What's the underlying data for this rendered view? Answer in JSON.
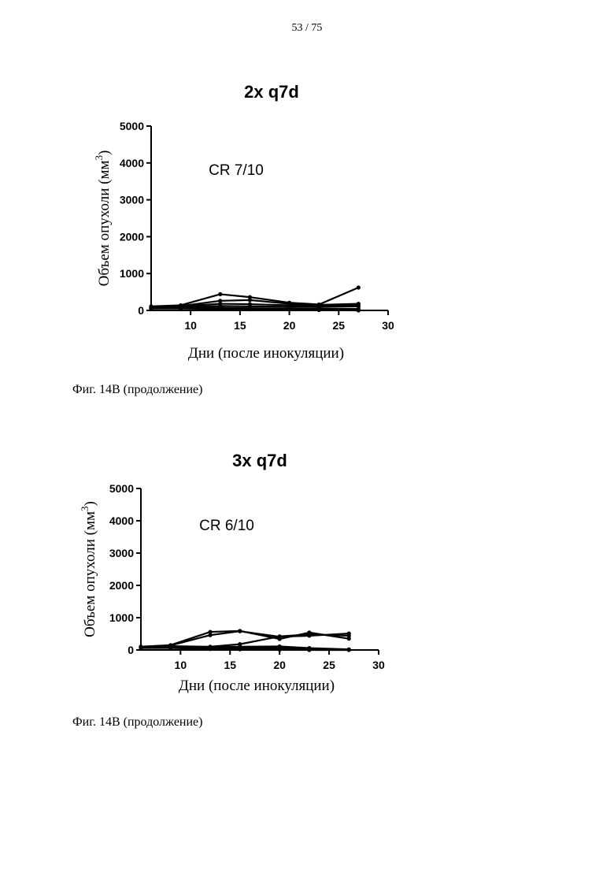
{
  "page": {
    "number": "53 / 75"
  },
  "captions": [
    "Фиг. 14В (продолжение)",
    "Фиг. 14В (продолжение)"
  ],
  "chart_data": [
    {
      "type": "line",
      "title": "2x q7d",
      "annotation": "CR 7/10",
      "xlabel": "Дни (после инокуляции)",
      "ylabel": "Объем опухоли (мм3)",
      "ylabel_main": "Объем опухоли (мм",
      "ylabel_sup": "3",
      "ylabel_close": ")",
      "xlim": [
        6,
        30
      ],
      "ylim": [
        0,
        5000
      ],
      "xticks": [
        10,
        15,
        20,
        25,
        30
      ],
      "yticks": [
        0,
        1000,
        2000,
        3000,
        4000,
        5000
      ],
      "grid": false,
      "color": "#000000",
      "series": [
        {
          "x": [
            6,
            9,
            13,
            16,
            20,
            23,
            27
          ],
          "y": [
            110,
            140,
            440,
            360,
            210,
            160,
            620
          ]
        },
        {
          "x": [
            6,
            9,
            13,
            16,
            20,
            23,
            27
          ],
          "y": [
            90,
            120,
            260,
            280,
            180,
            150,
            180
          ]
        },
        {
          "x": [
            6,
            9,
            13,
            16,
            20,
            23,
            27
          ],
          "y": [
            80,
            110,
            180,
            170,
            140,
            120,
            150
          ]
        },
        {
          "x": [
            6,
            9,
            13,
            16,
            20,
            23,
            27
          ],
          "y": [
            70,
            90,
            120,
            110,
            100,
            90,
            110
          ]
        },
        {
          "x": [
            6,
            9,
            13,
            16,
            20,
            23,
            27
          ],
          "y": [
            60,
            70,
            70,
            60,
            50,
            40,
            40
          ]
        },
        {
          "x": [
            6,
            9,
            13,
            16,
            20,
            23,
            27
          ],
          "y": [
            50,
            50,
            40,
            30,
            20,
            10,
            0
          ]
        }
      ]
    },
    {
      "type": "line",
      "title": "3x q7d",
      "annotation": "CR 6/10",
      "xlabel": "Дни (после инокуляции)",
      "ylabel": "Объем опухоли (мм3)",
      "ylabel_main": "Объем опухоли (мм",
      "ylabel_sup": "3",
      "ylabel_close": ")",
      "xlim": [
        6,
        30
      ],
      "ylim": [
        0,
        5000
      ],
      "xticks": [
        10,
        15,
        20,
        25,
        30
      ],
      "yticks": [
        0,
        1000,
        2000,
        3000,
        4000,
        5000
      ],
      "grid": false,
      "color": "#000000",
      "series": [
        {
          "x": [
            6,
            9,
            13,
            16,
            20,
            23,
            27
          ],
          "y": [
            100,
            150,
            560,
            590,
            340,
            540,
            350
          ]
        },
        {
          "x": [
            6,
            9,
            13,
            16,
            20,
            23,
            27
          ],
          "y": [
            100,
            140,
            460,
            580,
            410,
            440,
            510
          ]
        },
        {
          "x": [
            6,
            9,
            13,
            16,
            20,
            23,
            27
          ],
          "y": [
            90,
            120,
            100,
            180,
            420,
            480,
            440
          ]
        },
        {
          "x": [
            6,
            9,
            13,
            16,
            20,
            23,
            27
          ],
          "y": [
            80,
            100,
            90,
            100,
            110,
            60,
            20
          ]
        },
        {
          "x": [
            6,
            9,
            13,
            16,
            20,
            23,
            27
          ],
          "y": [
            70,
            80,
            50,
            60,
            60,
            40,
            10
          ]
        },
        {
          "x": [
            6,
            9,
            13,
            16,
            20,
            23,
            27
          ],
          "y": [
            60,
            60,
            30,
            20,
            10,
            0,
            0
          ]
        }
      ]
    }
  ]
}
